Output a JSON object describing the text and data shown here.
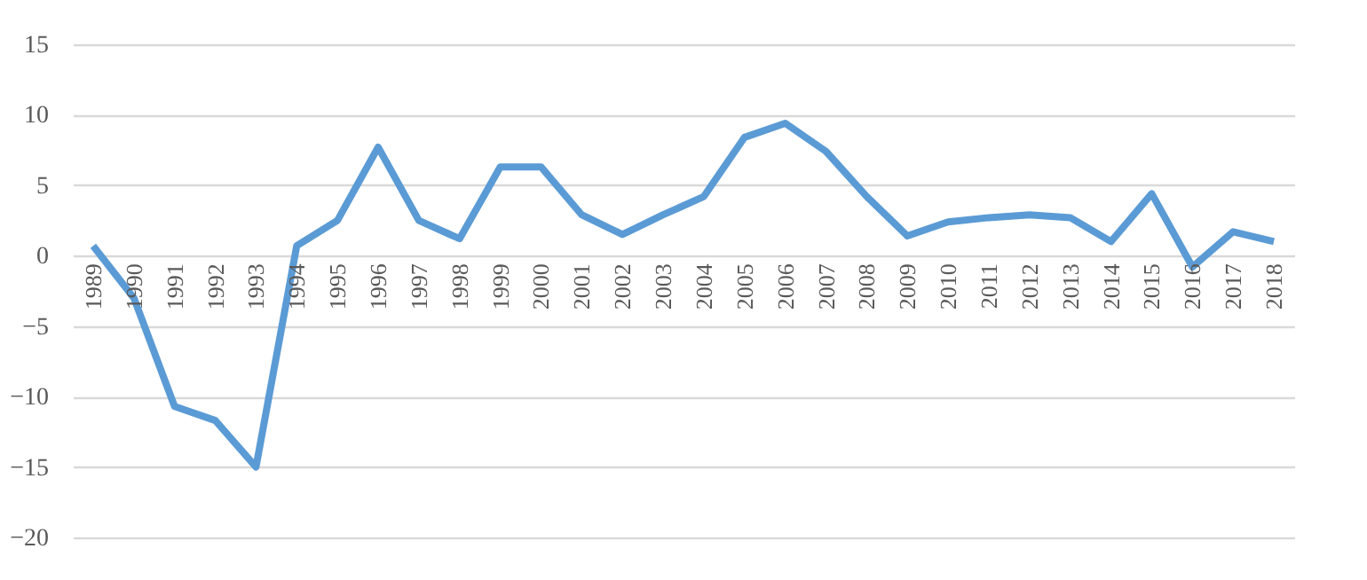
{
  "chart_data": {
    "type": "line",
    "categories": [
      "1989",
      "1990",
      "1991",
      "1992",
      "1993",
      "1994",
      "1995",
      "1996",
      "1997",
      "1998",
      "1999",
      "2000",
      "2001",
      "2002",
      "2003",
      "2004",
      "2005",
      "2006",
      "2007",
      "2008",
      "2009",
      "2010",
      "2011",
      "2012",
      "2013",
      "2014",
      "2015",
      "2016",
      "2017",
      "2018"
    ],
    "series": [
      {
        "color": "#5b9bd5",
        "values": [
          0.7,
          -3,
          -10.7,
          -11.7,
          -15,
          0.7,
          2.5,
          7.7,
          2.5,
          1.2,
          6.3,
          6.3,
          2.9,
          1.5,
          2.9,
          4.2,
          8.4,
          9.4,
          7.4,
          4.2,
          1.4,
          2.4,
          2.7,
          2.9,
          2.7,
          1.0,
          4.4,
          -0.8,
          1.7,
          1.0
        ]
      }
    ],
    "ylim": [
      -20,
      15
    ],
    "yticks": [
      -20,
      -15,
      -10,
      -5,
      0,
      5,
      10,
      15
    ],
    "grid": "y",
    "legend": false,
    "marker": "none",
    "line_style": "solid"
  }
}
